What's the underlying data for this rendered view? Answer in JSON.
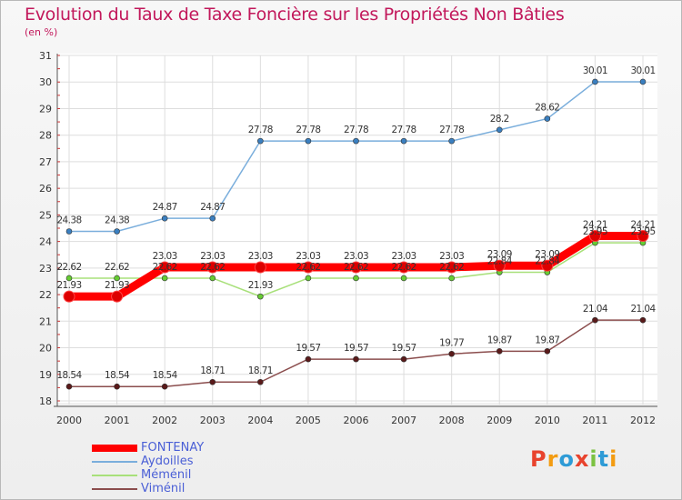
{
  "title": "Evolution du Taux de Taxe Foncière sur les Propriétés Non Bâties",
  "subtitle": "(en %)",
  "chart_data": {
    "type": "line",
    "categories": [
      "2000",
      "2001",
      "2002",
      "2003",
      "2004",
      "2005",
      "2006",
      "2007",
      "2008",
      "2009",
      "2010",
      "2011",
      "2012"
    ],
    "ylim": [
      18,
      31
    ],
    "yticks": [
      18,
      19,
      20,
      21,
      22,
      23,
      24,
      25,
      26,
      27,
      28,
      29,
      30,
      31
    ],
    "grid": true,
    "series": [
      {
        "name": "Aydoilles",
        "color": "#7aaedc",
        "marker": "#3a7fc0",
        "values": [
          24.38,
          24.38,
          24.87,
          24.87,
          27.78,
          27.78,
          27.78,
          27.78,
          27.78,
          28.2,
          28.62,
          30.01,
          30.01
        ],
        "labels": [
          "24.38",
          "24.38",
          "24.87",
          "24.87",
          "27.78",
          "27.78",
          "27.78",
          "27.78",
          "27.78",
          "28.2",
          "28.62",
          "30.01",
          "30.01"
        ]
      },
      {
        "name": "Méménil",
        "color": "#a8e07a",
        "marker": "#66cc33",
        "values": [
          22.62,
          22.62,
          22.62,
          22.62,
          21.93,
          22.62,
          22.62,
          22.62,
          22.62,
          22.84,
          22.84,
          23.95,
          23.95
        ],
        "labels": [
          "22.62",
          "22.62",
          "22.62",
          "22.62",
          "21.93",
          "22.62",
          "22.62",
          "22.62",
          "22.62",
          "22.84",
          "22.84",
          "23.95",
          "23.95"
        ]
      },
      {
        "name": "Viménil",
        "color": "#8b4d4d",
        "marker": "#5a1a1a",
        "values": [
          18.54,
          18.54,
          18.54,
          18.71,
          18.71,
          19.57,
          19.57,
          19.57,
          19.77,
          19.87,
          19.87,
          21.04,
          21.04
        ],
        "labels": [
          "18.54",
          "18.54",
          "18.54",
          "18.71",
          "18.71",
          "19.57",
          "19.57",
          "19.57",
          "19.77",
          "19.87",
          "19.87",
          "21.04",
          "21.04"
        ]
      },
      {
        "name": "FONTENAY",
        "color": "#ff0000",
        "marker": "#dd0000",
        "values": [
          21.93,
          21.93,
          23.03,
          23.03,
          23.03,
          23.03,
          23.03,
          23.03,
          23.03,
          23.09,
          23.09,
          24.21,
          24.21
        ],
        "labels": [
          "21.93",
          "21.93",
          "23.03",
          "23.03",
          "23.03",
          "23.03",
          "23.03",
          "23.03",
          "23.03",
          "23.09",
          "23.09",
          "24.21",
          "24.21"
        ]
      }
    ],
    "legend": [
      {
        "name": "FONTENAY",
        "color": "#ff0000"
      },
      {
        "name": "Aydoilles",
        "color": "#7aaedc"
      },
      {
        "name": "Méménil",
        "color": "#a8e07a"
      },
      {
        "name": "Viménil",
        "color": "#8b4d4d"
      }
    ],
    "legend_position": "bottom-left"
  },
  "logo": {
    "text": "Proxiti",
    "letters": [
      "P",
      "r",
      "o",
      "x",
      "i",
      "t",
      "i"
    ],
    "colors": [
      "#e8432d",
      "#f39c12",
      "#2e9bd6",
      "#e8432d",
      "#7cc242",
      "#2e9bd6",
      "#f39c12"
    ]
  }
}
